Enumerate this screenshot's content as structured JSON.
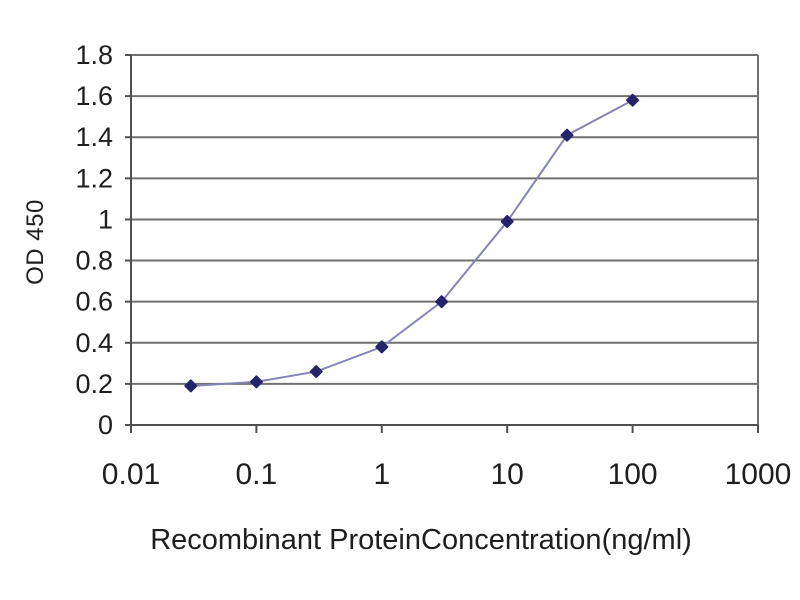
{
  "chart_data": {
    "type": "line",
    "x_scale": "log",
    "title": "",
    "xlabel": "Recombinant ProteinConcentration(ng/ml)",
    "ylabel": "OD 450",
    "x": [
      0.03,
      0.1,
      0.3,
      1,
      3,
      10,
      30,
      100
    ],
    "y": [
      0.19,
      0.21,
      0.26,
      0.38,
      0.6,
      0.99,
      1.41,
      1.58
    ],
    "xlim": [
      0.01,
      1000
    ],
    "ylim": [
      0,
      1.8
    ],
    "x_ticks": [
      0.01,
      0.1,
      1,
      10,
      100,
      1000
    ],
    "x_tick_labels": [
      "0.01",
      "0.1",
      "1",
      "10",
      "100",
      "1000"
    ],
    "y_ticks": [
      0,
      0.2,
      0.4,
      0.6,
      0.8,
      1,
      1.2,
      1.4,
      1.6,
      1.8
    ],
    "y_tick_labels": [
      "0",
      "0.2",
      "0.4",
      "0.6",
      "0.8",
      "1",
      "1.2",
      "1.4",
      "1.6",
      "1.8"
    ],
    "grid": "horizontal",
    "legend": "none",
    "marker": "diamond",
    "colors": {
      "line": "#8585b5",
      "marker": "#24246a",
      "grid": "#707070",
      "axis": "#4f4f4f",
      "text": "#1e1e1e",
      "background": "#ffffff"
    }
  }
}
